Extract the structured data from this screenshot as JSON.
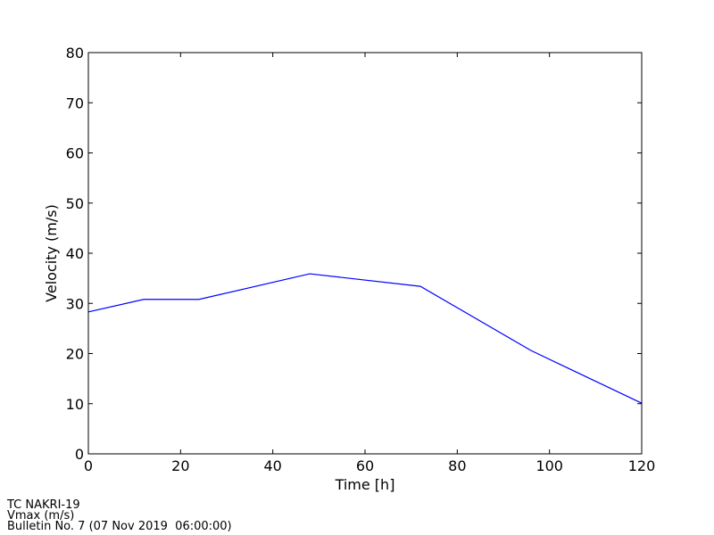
{
  "chart_data": {
    "type": "line",
    "x": [
      0,
      12,
      24,
      48,
      72,
      96,
      120
    ],
    "series": [
      {
        "name": "Vmax",
        "color": "#0000ff",
        "values": [
          28.3,
          30.8,
          30.8,
          35.9,
          33.4,
          20.6,
          10.1
        ]
      }
    ],
    "xlabel": "Time [h]",
    "ylabel": "Velocity (m/s)",
    "xlim": [
      0,
      120
    ],
    "xticks": [
      0,
      20,
      40,
      60,
      80,
      100,
      120
    ],
    "ylim": [
      0,
      80
    ],
    "yticks": [
      0,
      10,
      20,
      30,
      40,
      50,
      60,
      70,
      80
    ],
    "annotations": [
      "TC NAKRI-19",
      "Vmax (m/s)",
      "Bulletin No. 7 (07 Nov 2019  06:00:00)"
    ]
  }
}
